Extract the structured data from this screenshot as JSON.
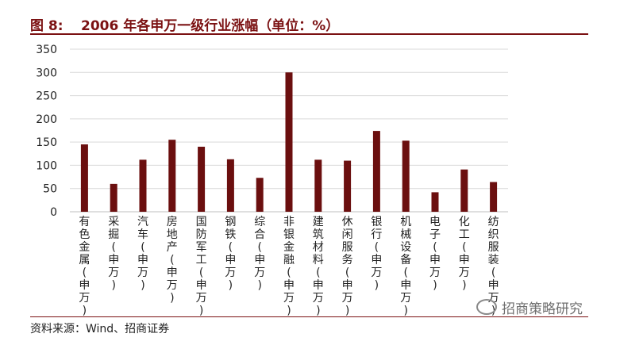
{
  "figure": {
    "number": "图 8:",
    "title": "2006 年各申万一级行业涨幅（单位：%）"
  },
  "source": "资料来源：Wind、招商证券",
  "watermark": "招商策略研究",
  "colors": {
    "bar": "#6b0f0f",
    "accent": "#7b1112",
    "grid": "#d9d9d9"
  },
  "chart_data": {
    "type": "bar",
    "title": "",
    "xlabel": "",
    "ylabel": "",
    "ylim": [
      0,
      350
    ],
    "yticks": [
      0,
      50,
      100,
      150,
      200,
      250,
      300,
      350
    ],
    "grid": true,
    "categories": [
      "有色金属(申万)",
      "采掘(申万)",
      "汽车(申万)",
      "房地产(申万)",
      "国防军工(申万)",
      "钢铁(申万)",
      "综合(申万)",
      "非银金融(申万)",
      "建筑材料(申万)",
      "休闲服务(申万)",
      "银行(申万)",
      "机械设备(申万)",
      "电子(申万)",
      "化工(申万)",
      "纺织服装(申万)"
    ],
    "values": [
      145,
      60,
      112,
      155,
      140,
      113,
      73,
      300,
      112,
      110,
      174,
      153,
      42,
      91,
      64
    ]
  }
}
